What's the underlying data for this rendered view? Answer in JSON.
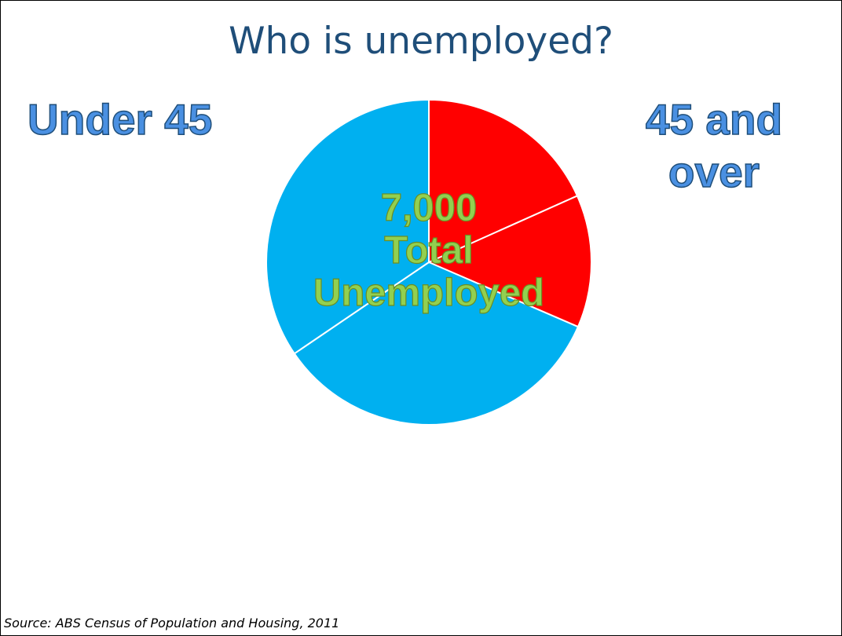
{
  "title": "Who is unemployed?",
  "labels": {
    "left": "Under 45",
    "right": "45 and over"
  },
  "center_text": {
    "line1": "7,000",
    "line2": "Total",
    "line3": "Unemployed"
  },
  "source": "Source: ABS Census of Population and Housing, 2011",
  "chart_data": {
    "type": "pie",
    "total_label": "7,000 Total Unemployed",
    "title": "Who is unemployed?",
    "slices": [
      {
        "value": 18.3,
        "color": "#ff0000"
      },
      {
        "value": 13.2,
        "color": "#ff0000"
      },
      {
        "value": 34.0,
        "color": "#00b0f0"
      },
      {
        "value": 34.5,
        "color": "#00b0f0"
      }
    ],
    "start_angle_deg": 0,
    "direction": "clockwise",
    "separator_color": "#ffffff"
  }
}
